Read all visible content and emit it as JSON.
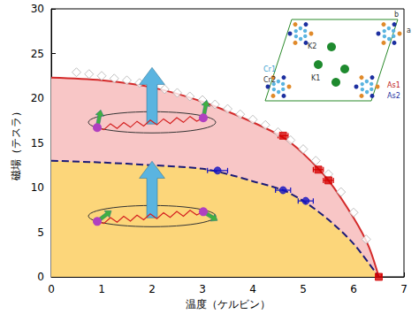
{
  "chart_data": {
    "type": "line",
    "x_label": "温度（ケルビン）",
    "y_label": "磁場（テスラ）",
    "xlim": [
      0,
      7
    ],
    "xticks": [
      0,
      1,
      2,
      3,
      4,
      5,
      6,
      7
    ],
    "ylim": [
      0,
      30
    ],
    "yticks": [
      0,
      5,
      10,
      15,
      20,
      25,
      30
    ],
    "grid": false,
    "inset_labels": [
      "K2",
      "K1",
      "Cr1",
      "Cr2",
      "As1",
      "As2",
      "a",
      "b"
    ],
    "series": [
      {
        "type": "area",
        "color": "#d42a2a",
        "line_style": "solid",
        "x": [
          0,
          1,
          2,
          3,
          4,
          4.6,
          5,
          5.5,
          6,
          6.3,
          6.5
        ],
        "values": [
          22.3,
          22.0,
          21.2,
          19.6,
          17.3,
          15.6,
          13.8,
          10.8,
          6.6,
          3.4,
          0
        ]
      },
      {
        "type": "area",
        "color": "#1c1c78",
        "line_style": "dashed",
        "x": [
          0,
          1,
          2,
          3,
          3.5,
          4,
          4.6,
          5,
          5.5,
          6,
          6.5
        ],
        "values": [
          13.0,
          12.8,
          12.5,
          12.1,
          11.5,
          10.7,
          9.7,
          8.5,
          6.4,
          3.7,
          0
        ]
      },
      {
        "type": "scatter",
        "marker": "diamond",
        "color": "#ffffff",
        "x": [
          0.5,
          0.75,
          1.0,
          1.25,
          1.5,
          1.75,
          2.0,
          2.25,
          2.5,
          2.75,
          3.0,
          3.25,
          3.5,
          3.75,
          4.0,
          4.25,
          4.5,
          4.75,
          5.0,
          5.25,
          5.5,
          5.75,
          6.0,
          6.25
        ],
        "values": [
          22.9,
          22.7,
          22.5,
          22.2,
          22.0,
          21.7,
          21.4,
          21.0,
          20.6,
          20.2,
          19.8,
          19.3,
          18.8,
          18.2,
          17.6,
          17.0,
          16.2,
          15.3,
          14.3,
          13.0,
          11.5,
          9.5,
          7.2,
          4.2
        ]
      },
      {
        "type": "scatter",
        "marker": "square",
        "color": "#d40000",
        "x": [
          4.6,
          5.3,
          5.5,
          6.5
        ],
        "values": [
          15.8,
          12.0,
          10.8,
          0
        ],
        "xerr": [
          0.1,
          0.1,
          0.1,
          0.05
        ]
      },
      {
        "type": "scatter",
        "marker": "circle",
        "color": "#1414c0",
        "x": [
          3.3,
          4.6,
          5.05
        ],
        "values": [
          11.9,
          9.7,
          8.5
        ],
        "xerr": [
          0.2,
          0.15,
          0.15
        ]
      }
    ]
  }
}
